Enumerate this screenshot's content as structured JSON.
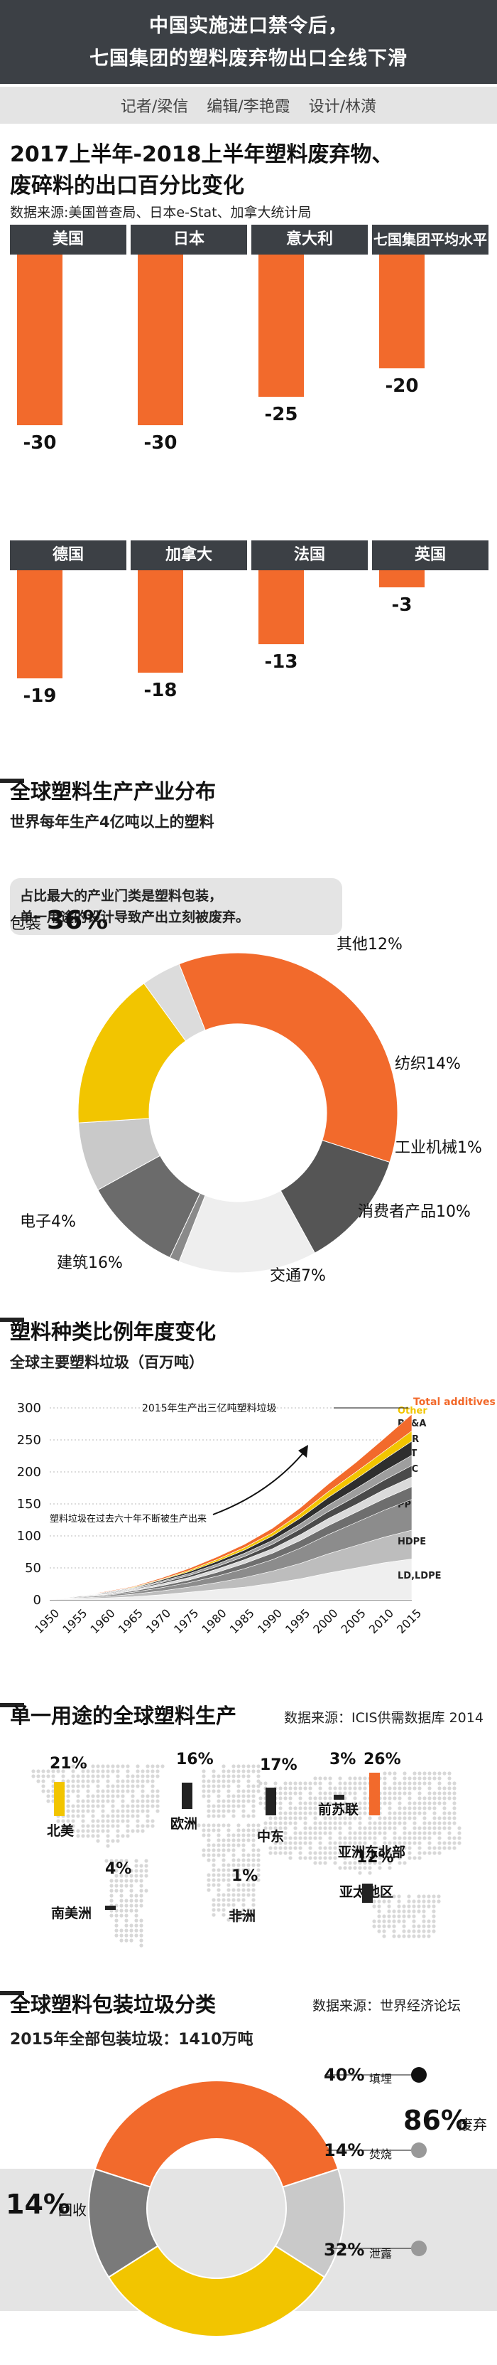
{
  "header": {
    "line1": "中国实施进口禁令后，",
    "line2": "七国集团的塑料废弃物出口全线下滑"
  },
  "credits": [
    "记者/梁信",
    "编辑/李艳霞",
    "设计/林潢"
  ],
  "section1": {
    "title_line1": "2017上半年-2018上半年塑料废弃物、",
    "title_line2": "废碎料的出口百分比变化",
    "source": "数据来源:美国普查局、日本e-Stat、加拿大统计局"
  },
  "section2": {
    "title": "全球塑料生产产业分布",
    "subtitle": "世界每年生产4亿吨以上的塑料",
    "note_line1": "占比最大的产业门类是塑料包装，",
    "note_line2": "单一用途的设计导致产出立刻被废弃。"
  },
  "section3": {
    "title": "塑料种类比例年度变化",
    "subtitle": "全球主要塑料垃圾（百万吨）",
    "annot_top": "2015年生产出三亿吨塑料垃圾",
    "annot_mid": "塑料垃圾在过去六十年不断被生产出来"
  },
  "section4": {
    "title": "单一用途的全球塑料生产",
    "source": "数据来源：ICIS供需数据库 2014"
  },
  "section5": {
    "title": "全球塑料包装垃圾分类",
    "source": "数据来源：世界经济论坛",
    "subtitle": "2015年全部包装垃圾：1410万吨",
    "landfill_pct": "40%",
    "landfill_label": "填埋",
    "incin_pct": "14%",
    "incin_label": "焚烧",
    "leak_pct": "32%",
    "leak_label": "泄露",
    "waste_pct": "86%",
    "waste_label": "废弃",
    "recycle_pct": "14%",
    "recycle_label": "回收"
  },
  "chart_data": [
    {
      "type": "bar",
      "title": "2017上半年-2018上半年塑料废弃物、废碎料的出口百分比变化",
      "categories": [
        "美国",
        "日本",
        "意大利",
        "七国集团平均水平",
        "德国",
        "加拿大",
        "法国",
        "英国"
      ],
      "values": [
        -30,
        -30,
        -25,
        -20,
        -19,
        -18,
        -13,
        -3
      ],
      "value_labels": [
        "-30",
        "-30",
        "-25",
        "-20",
        "-19",
        "-18",
        "-13",
        "-3"
      ],
      "ylim": [
        -30,
        0
      ]
    },
    {
      "type": "pie",
      "title": "全球塑料生产产业分布",
      "labels": [
        "包装",
        "其他",
        "纺织",
        "工业机械",
        "消费者产品",
        "交通",
        "建筑",
        "电子"
      ],
      "display_labels": [
        "包装",
        "其他12%",
        "纺织14%",
        "工业机械1%",
        "消费者产品10%",
        "交通7%",
        "建筑16%",
        "电子4%"
      ],
      "packaging_label": "36%",
      "values": [
        36,
        12,
        14,
        1,
        10,
        7,
        16,
        4
      ],
      "colors": [
        "#f26a2c",
        "#555555",
        "#eeeeee",
        "#8a8a8a",
        "#6b6b6b",
        "#c9c9c9",
        "#f2c500",
        "#dcdcdc"
      ]
    },
    {
      "type": "area",
      "title": "全球主要塑料垃圾（百万吨）",
      "x": [
        1950,
        1955,
        1960,
        1965,
        1970,
        1975,
        1980,
        1985,
        1990,
        1995,
        2000,
        2005,
        2010,
        2015
      ],
      "x_tick_labels": [
        "1950",
        "1955",
        "1960",
        "1965",
        "1970",
        "1975",
        "1980",
        "1985",
        "1990",
        "1995",
        "2000",
        "2005",
        "2010",
        "2015"
      ],
      "ylim": [
        0,
        300
      ],
      "y_ticks": [
        0,
        50,
        100,
        150,
        200,
        250,
        300
      ],
      "y_tick_labels": [
        "0",
        "50",
        "100",
        "150",
        "200",
        "250",
        "300"
      ],
      "series": [
        {
          "name": "LD,LDPE",
          "color": "#efefef",
          "values": [
            1,
            2,
            3,
            5,
            8,
            12,
            16,
            20,
            26,
            33,
            42,
            50,
            58,
            64
          ]
        },
        {
          "name": "HDPE",
          "color": "#bdbdbd",
          "values": [
            0,
            1,
            2,
            4,
            6,
            8,
            11,
            15,
            19,
            24,
            30,
            35,
            40,
            45
          ]
        },
        {
          "name": "PP",
          "color": "#8c8c8c",
          "values": [
            0,
            1,
            2,
            3,
            5,
            7,
            10,
            14,
            18,
            24,
            30,
            36,
            42,
            48
          ]
        },
        {
          "name": "PS",
          "color": "#6e6e6e",
          "values": [
            0,
            1,
            1,
            2,
            3,
            4,
            6,
            8,
            10,
            12,
            14,
            16,
            18,
            20
          ]
        },
        {
          "name": "PVC",
          "color": "#dadada",
          "values": [
            0,
            1,
            1,
            2,
            3,
            4,
            5,
            6,
            7,
            9,
            11,
            12,
            14,
            15
          ]
        },
        {
          "name": "PET",
          "color": "#4a4a4a",
          "values": [
            0,
            0,
            1,
            1,
            2,
            3,
            4,
            5,
            7,
            9,
            11,
            13,
            15,
            18
          ]
        },
        {
          "name": "PUR",
          "color": "#9e9e9e",
          "values": [
            0,
            0,
            1,
            1,
            2,
            3,
            4,
            5,
            6,
            8,
            10,
            12,
            14,
            16
          ]
        },
        {
          "name": "PP&A",
          "color": "#2e2e2e",
          "values": [
            0,
            0,
            1,
            1,
            2,
            3,
            4,
            5,
            7,
            9,
            12,
            15,
            18,
            22
          ]
        },
        {
          "name": "Other",
          "color": "#f2c500",
          "values": [
            0,
            0,
            0,
            1,
            1,
            2,
            3,
            4,
            5,
            7,
            9,
            11,
            13,
            16
          ]
        },
        {
          "name": "Total additives",
          "color": "#f26a2c",
          "values": [
            0,
            0,
            1,
            1,
            2,
            3,
            4,
            5,
            7,
            9,
            12,
            15,
            20,
            26
          ]
        }
      ]
    },
    {
      "type": "bar",
      "title": "单一用途的全球塑料生产",
      "categories": [
        "北美",
        "南美洲",
        "欧洲",
        "非洲",
        "中东",
        "前苏联",
        "亚洲东北部",
        "亚太地区"
      ],
      "value_labels": [
        "21%",
        "4%",
        "16%",
        "1%",
        "17%",
        "3%",
        "26%",
        "12%"
      ],
      "values": [
        21,
        4,
        16,
        1,
        17,
        3,
        26,
        12
      ]
    },
    {
      "type": "pie",
      "title": "全球塑料包装垃圾分类",
      "labels": [
        "填埋",
        "焚烧",
        "泄露",
        "回收"
      ],
      "values": [
        40,
        14,
        32,
        14
      ],
      "colors": [
        "#f26a2c",
        "#c9c9c9",
        "#f2c500",
        "#7a7a7a"
      ]
    }
  ],
  "colors": {
    "accent": "#f26a2c",
    "dark": "#3c4045",
    "yellow": "#f2c500",
    "grey": "#e4e4e4"
  }
}
